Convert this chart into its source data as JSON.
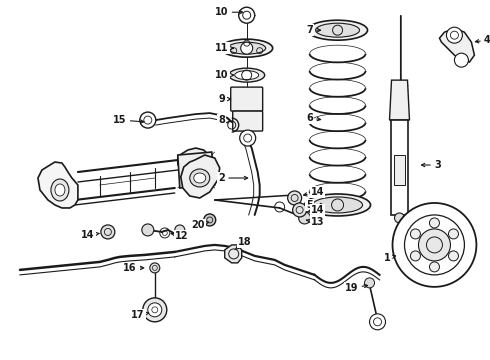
{
  "bg_color": "#ffffff",
  "line_color": "#1a1a1a",
  "fig_width": 4.9,
  "fig_height": 3.6,
  "dpi": 100,
  "xlim": [
    0,
    490
  ],
  "ylim": [
    0,
    360
  ]
}
